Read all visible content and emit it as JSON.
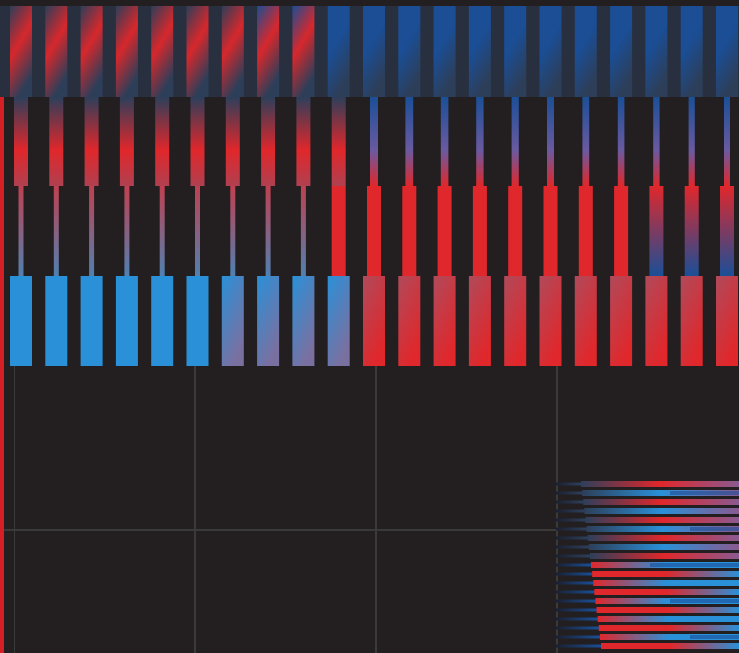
{
  "colors": {
    "background": "#231f20",
    "top_band": "#283040",
    "red": "#e0272b",
    "blue": "#2a90d8",
    "deep_blue": "#1a4f98",
    "slate": "#2d3f5a",
    "grid": "#3a3a3a",
    "edge_line": "#d42025"
  },
  "pattern": {
    "column_count": 21,
    "hbar_count": 19
  }
}
